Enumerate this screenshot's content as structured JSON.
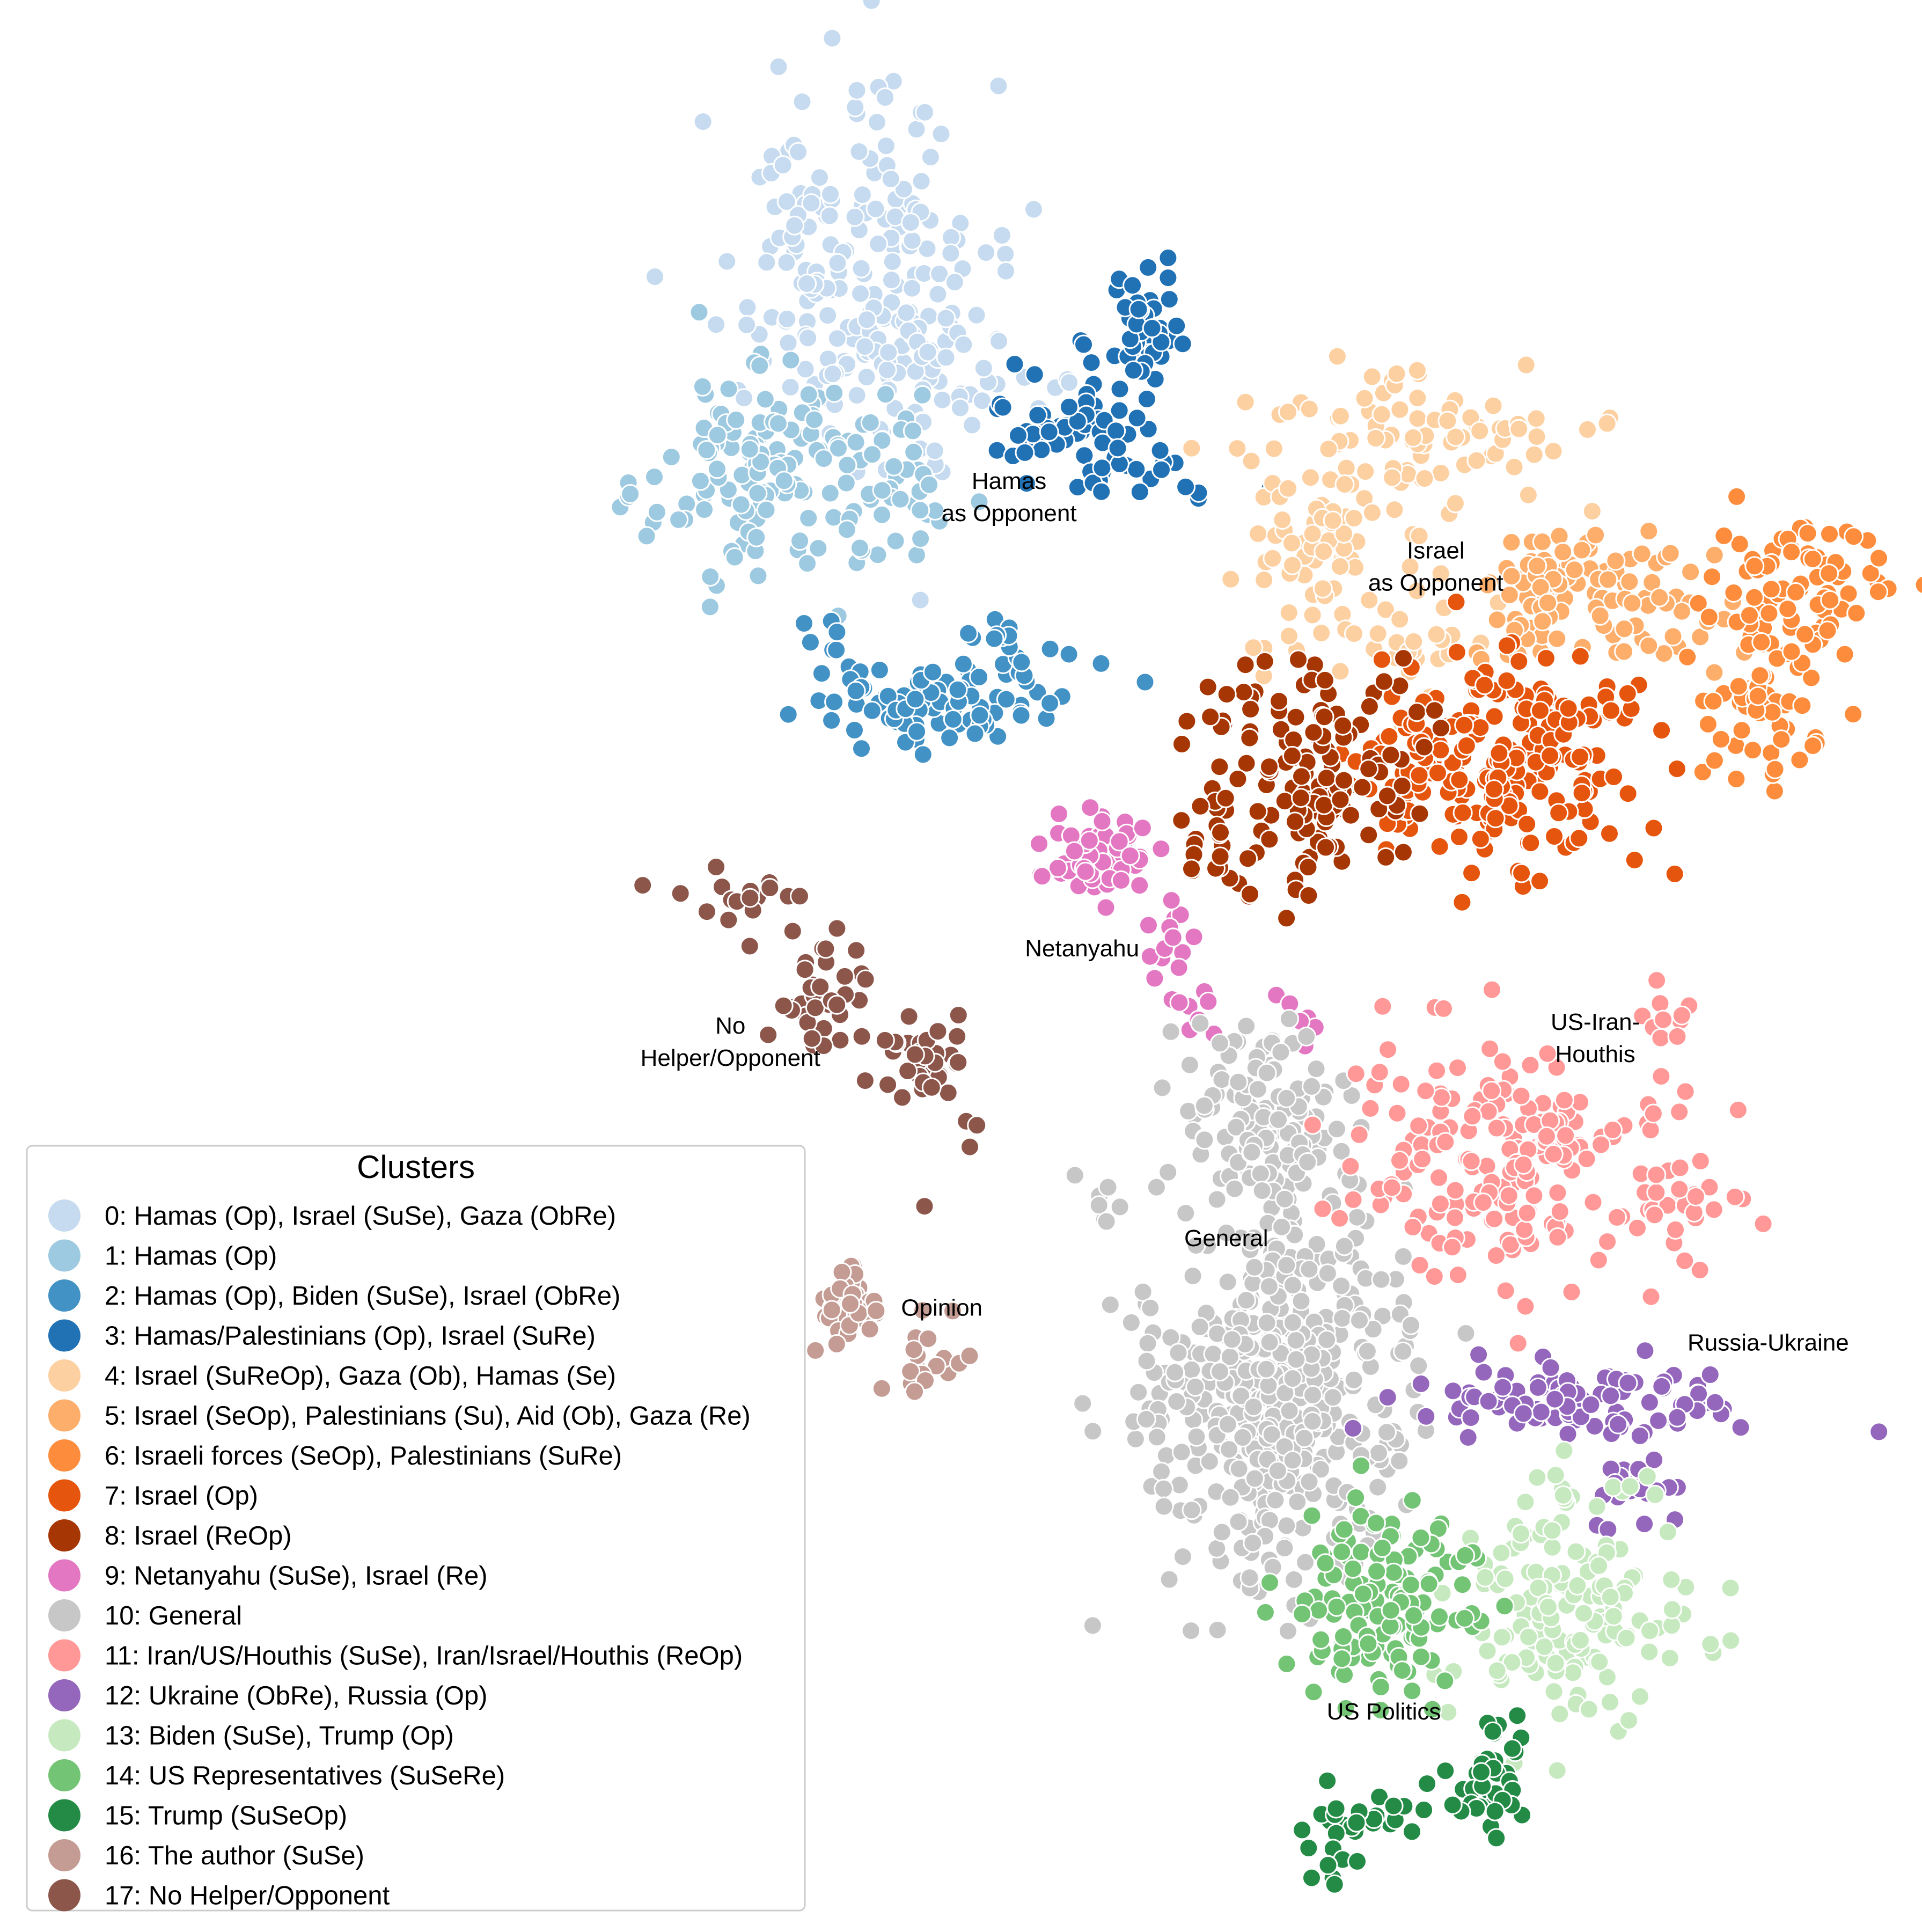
{
  "chart_data": {
    "type": "scatter",
    "xlim": [
      0,
      100
    ],
    "ylim": [
      0,
      100
    ],
    "grid": false,
    "legend": {
      "title": "Clusters",
      "placement": "bottom-left"
    },
    "annotations": [
      {
        "lines": [
          "Hamas",
          "as Opponent"
        ],
        "x": 52.5,
        "y": 74.7
      },
      {
        "lines": [
          "Israel",
          "as Opponent"
        ],
        "x": 74.7,
        "y": 71.1
      },
      {
        "lines": [
          "Netanyahu"
        ],
        "x": 56.3,
        "y": 50.5
      },
      {
        "lines": [
          "No",
          "Helper/Opponent"
        ],
        "x": 38.0,
        "y": 46.5
      },
      {
        "lines": [
          "US-Iran-",
          "Houthis"
        ],
        "x": 83.0,
        "y": 46.7
      },
      {
        "lines": [
          "General"
        ],
        "x": 63.8,
        "y": 35.5
      },
      {
        "lines": [
          "Opinion"
        ],
        "x": 49.0,
        "y": 31.9
      },
      {
        "lines": [
          "Russia-Ukraine"
        ],
        "x": 92.0,
        "y": 30.1
      },
      {
        "lines": [
          "US Politics"
        ],
        "x": 72.0,
        "y": 11.0
      }
    ],
    "series": [
      {
        "name": "0: Hamas (Op), Israel (SuSe), Gaza (ObRe)",
        "color": "#c6dbef",
        "clusters": [
          {
            "x": 44.5,
            "y": 86,
            "sx": 3.6,
            "sy": 4.8,
            "n": 190
          },
          {
            "x": 49,
            "y": 80.5,
            "sx": 3,
            "sy": 2.2,
            "n": 55
          }
        ]
      },
      {
        "name": "1: Hamas (Op)",
        "color": "#9ecae1",
        "clusters": [
          {
            "x": 39.5,
            "y": 75.5,
            "sx": 2.6,
            "sy": 2.8,
            "n": 120
          },
          {
            "x": 45.5,
            "y": 74,
            "sx": 2,
            "sy": 2.2,
            "n": 45
          },
          {
            "x": 33,
            "y": 74.5,
            "sx": 0.4,
            "sy": 0.4,
            "n": 4
          }
        ]
      },
      {
        "name": "2: Hamas (Op), Biden (SuSe), Israel (ObRe)",
        "color": "#4292c6",
        "clusters": [
          {
            "x": 49,
            "y": 63.5,
            "sx": 3.3,
            "sy": 1.3,
            "n": 90
          },
          {
            "x": 52,
            "y": 67,
            "sx": 1.2,
            "sy": 1,
            "n": 12
          },
          {
            "x": 43,
            "y": 67.5,
            "sx": 0.8,
            "sy": 0.8,
            "n": 6
          }
        ]
      },
      {
        "name": "3: Hamas/Palestinians (Op), Israel (SuRe)",
        "color": "#2171b5",
        "clusters": [
          {
            "x": 59.5,
            "y": 82.5,
            "sx": 1.2,
            "sy": 2,
            "n": 45
          },
          {
            "x": 55.5,
            "y": 78,
            "sx": 2.4,
            "sy": 1.2,
            "n": 45
          },
          {
            "x": 59.5,
            "y": 75.5,
            "sx": 2.5,
            "sy": 0.9,
            "n": 25
          }
        ]
      },
      {
        "name": "4: Israel (SuReOp), Gaza (Ob), Hamas (Se)",
        "color": "#fdd0a2",
        "clusters": [
          {
            "x": 73,
            "y": 77,
            "sx": 4.2,
            "sy": 1.8,
            "n": 90
          },
          {
            "x": 68,
            "y": 71,
            "sx": 2,
            "sy": 3,
            "n": 70
          },
          {
            "x": 74,
            "y": 66,
            "sx": 1.6,
            "sy": 2,
            "n": 25
          }
        ]
      },
      {
        "name": "5: Israel (SeOp), Palestinians (Su), Aid (Ob), Gaza (Re)",
        "color": "#fdae6b",
        "clusters": [
          {
            "x": 81.5,
            "y": 70.5,
            "sx": 2.2,
            "sy": 1.3,
            "n": 55
          },
          {
            "x": 86,
            "y": 68,
            "sx": 2.5,
            "sy": 1.5,
            "n": 45
          },
          {
            "x": 79,
            "y": 67,
            "sx": 1.4,
            "sy": 1,
            "n": 15
          }
        ]
      },
      {
        "name": "6: Israeli forces (SeOp), Palestinians (SuRe)",
        "color": "#fd8d3c",
        "clusters": [
          {
            "x": 93.5,
            "y": 70,
            "sx": 2.5,
            "sy": 1.6,
            "n": 75
          },
          {
            "x": 92,
            "y": 64,
            "sx": 2.2,
            "sy": 2,
            "n": 60
          }
        ]
      },
      {
        "name": "7: Israel (Op)",
        "color": "#e6550d",
        "clusters": [
          {
            "x": 79,
            "y": 60.5,
            "sx": 3.5,
            "sy": 2.8,
            "n": 210
          },
          {
            "x": 73.5,
            "y": 61,
            "sx": 1.5,
            "sy": 1,
            "n": 20
          }
        ]
      },
      {
        "name": "8: Israel (ReOp)",
        "color": "#a63603",
        "clusters": [
          {
            "x": 68,
            "y": 60,
            "sx": 2.4,
            "sy": 3,
            "n": 130
          },
          {
            "x": 63.5,
            "y": 56,
            "sx": 1.2,
            "sy": 1.5,
            "n": 20
          },
          {
            "x": 62.5,
            "y": 63,
            "sx": 0.9,
            "sy": 0.8,
            "n": 5
          }
        ]
      },
      {
        "name": "9: Netanyahu (SuSe), Israel (Re)",
        "color": "#e377c2",
        "clusters": [
          {
            "x": 57.5,
            "y": 56,
            "sx": 1.6,
            "sy": 1.2,
            "n": 55
          },
          {
            "x": 61,
            "y": 51.5,
            "sx": 0.8,
            "sy": 1.4,
            "n": 18
          },
          {
            "x": 62.5,
            "y": 47,
            "sx": 0.4,
            "sy": 1,
            "n": 8
          },
          {
            "x": 67.5,
            "y": 47.5,
            "sx": 0.5,
            "sy": 1,
            "n": 6
          }
        ]
      },
      {
        "name": "10: General",
        "color": "#c7c7c7",
        "clusters": [
          {
            "x": 66,
            "y": 42,
            "sx": 2.3,
            "sy": 2.5,
            "n": 120
          },
          {
            "x": 66.5,
            "y": 28,
            "sx": 3.5,
            "sy": 5,
            "n": 460
          },
          {
            "x": 57,
            "y": 38,
            "sx": 1.2,
            "sy": 0.8,
            "n": 6
          }
        ]
      },
      {
        "name": "11: Iran/US/Houthis (SuSe), Iran/Israel/Houthis (ReOp)",
        "color": "#ff9896",
        "clusters": [
          {
            "x": 78.5,
            "y": 40,
            "sx": 4.2,
            "sy": 3,
            "n": 200
          },
          {
            "x": 86.5,
            "y": 47,
            "sx": 0.8,
            "sy": 0.9,
            "n": 10
          },
          {
            "x": 88,
            "y": 38,
            "sx": 1.5,
            "sy": 0.8,
            "n": 18
          }
        ]
      },
      {
        "name": "12: Ukraine (ObRe), Russia (Op)",
        "color": "#9467bd",
        "clusters": [
          {
            "x": 82.5,
            "y": 27.5,
            "sx": 4.5,
            "sy": 1,
            "n": 100
          },
          {
            "x": 85.5,
            "y": 23.5,
            "sx": 1.6,
            "sy": 1.3,
            "n": 20
          }
        ]
      },
      {
        "name": "13: Biden (SuSe), Trump (Op)",
        "color": "#c7e9c0",
        "clusters": [
          {
            "x": 82,
            "y": 17,
            "sx": 3,
            "sy": 3,
            "n": 150
          }
        ]
      },
      {
        "name": "14: US Representatives (SuSeRe)",
        "color": "#74c476",
        "clusters": [
          {
            "x": 72,
            "y": 17,
            "sx": 2.5,
            "sy": 2.5,
            "n": 140
          }
        ]
      },
      {
        "name": "15: Trump (SuSeOp)",
        "color": "#238b45",
        "clusters": [
          {
            "x": 77.5,
            "y": 8.5,
            "sx": 0.9,
            "sy": 1.6,
            "n": 40
          },
          {
            "x": 71.5,
            "y": 6,
            "sx": 2.3,
            "sy": 0.9,
            "n": 30
          },
          {
            "x": 69.5,
            "y": 3.5,
            "sx": 0.8,
            "sy": 0.5,
            "n": 8
          }
        ]
      },
      {
        "name": "16: The author (SuSe)",
        "color": "#c49c94",
        "clusters": [
          {
            "x": 44.5,
            "y": 32.5,
            "sx": 0.9,
            "sy": 0.9,
            "n": 40
          },
          {
            "x": 48.5,
            "y": 29.5,
            "sx": 1.2,
            "sy": 1,
            "n": 18
          }
        ]
      },
      {
        "name": "17: No Helper/Opponent",
        "color": "#8c564b",
        "clusters": [
          {
            "x": 38.5,
            "y": 53.5,
            "sx": 1.8,
            "sy": 0.8,
            "n": 18
          },
          {
            "x": 43,
            "y": 48.5,
            "sx": 1.3,
            "sy": 1.5,
            "n": 35
          },
          {
            "x": 47.5,
            "y": 45,
            "sx": 1.2,
            "sy": 1.2,
            "n": 35
          },
          {
            "x": 51,
            "y": 42,
            "sx": 0.6,
            "sy": 0.6,
            "n": 3
          },
          {
            "x": 48,
            "y": 37.5,
            "sx": 0.1,
            "sy": 0.1,
            "n": 1
          }
        ]
      }
    ]
  }
}
